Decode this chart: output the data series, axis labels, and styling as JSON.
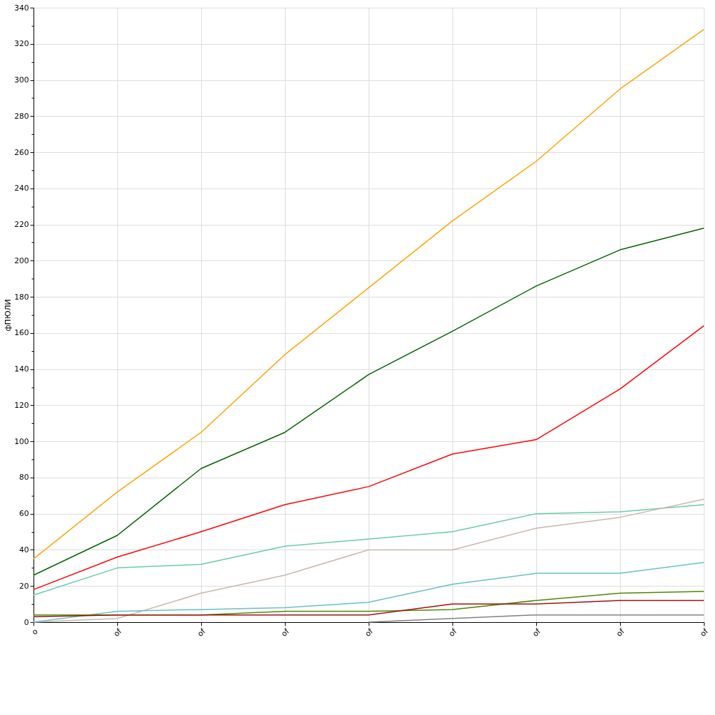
{
  "chart_data": {
    "type": "line",
    "ylabel": "фПЮЛИ",
    "categories": [
      "o",
      "of",
      "of",
      "of",
      "of",
      "of",
      "of",
      "of",
      "of"
    ],
    "ylim": [
      0,
      340
    ],
    "yticks": [
      0,
      {
        "value": 10,
        "label": null
      },
      20,
      {
        "value": 30,
        "label": null
      },
      40,
      {
        "value": 50,
        "label": null
      },
      60,
      {
        "value": 70,
        "label": null
      },
      80,
      {
        "value": 90,
        "label": null
      },
      100,
      {
        "value": 110,
        "label": null
      },
      120,
      {
        "value": 130,
        "label": null
      },
      140,
      {
        "value": 150,
        "label": null
      },
      160,
      {
        "value": 170,
        "label": null
      },
      180,
      {
        "value": 190,
        "label": null
      },
      200,
      {
        "value": 210,
        "label": null
      },
      220,
      {
        "value": 230,
        "label": null
      },
      240,
      {
        "value": 250,
        "label": null
      },
      260,
      {
        "value": 270,
        "label": null
      },
      280,
      {
        "value": 290,
        "label": null
      },
      300,
      {
        "value": 310,
        "label": null
      },
      320,
      {
        "value": 330,
        "label": null
      },
      340
    ],
    "grid": true,
    "legend": false,
    "marker": "none",
    "line_style": "solid",
    "series": [
      {
        "color": "#ffa500",
        "values": [
          35,
          72,
          105,
          148,
          185,
          222,
          255,
          295,
          328
        ]
      },
      {
        "color": "#006400",
        "values": [
          26,
          48,
          85,
          105,
          137,
          161,
          186,
          206,
          218
        ]
      },
      {
        "color": "#ff0000",
        "values": [
          18,
          36,
          50,
          65,
          75,
          93,
          101,
          129,
          164
        ]
      },
      {
        "color": "#66cdaa",
        "values": [
          15,
          30,
          32,
          42,
          46,
          50,
          60,
          61,
          65
        ]
      },
      {
        "color": "#c8b8a8",
        "values": [
          0,
          2,
          16,
          26,
          40,
          40,
          52,
          58,
          68
        ]
      },
      {
        "color": "#66c0c8",
        "values": [
          0,
          6,
          7,
          8,
          11,
          21,
          27,
          27,
          33
        ]
      },
      {
        "color": "#4a8a00",
        "values": [
          4,
          4,
          4,
          6,
          6,
          7,
          12,
          16,
          17
        ]
      },
      {
        "color": "#a01010",
        "values": [
          3,
          4,
          4,
          4,
          4,
          10,
          10,
          12,
          12
        ]
      },
      {
        "color": "#808080",
        "values": [
          null,
          null,
          null,
          null,
          0,
          2,
          4,
          4,
          4
        ]
      }
    ]
  }
}
